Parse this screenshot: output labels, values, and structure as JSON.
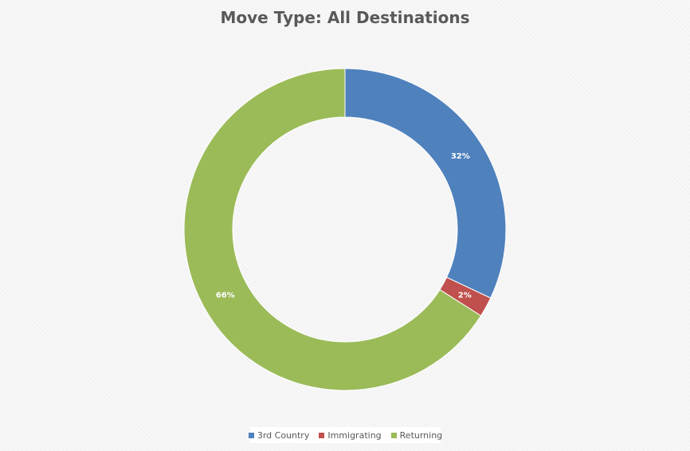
{
  "chart_data": {
    "type": "pie",
    "title": "Move Type: All Destinations",
    "categories": [
      "3rd Country",
      "Immigrating",
      "Returning"
    ],
    "values": [
      32,
      2,
      66
    ],
    "data_labels": [
      "32%",
      "2%",
      "66%"
    ],
    "colors": [
      "#4f81bd",
      "#c0504d",
      "#9bbb59"
    ],
    "donut": true,
    "legend": "bottom"
  }
}
